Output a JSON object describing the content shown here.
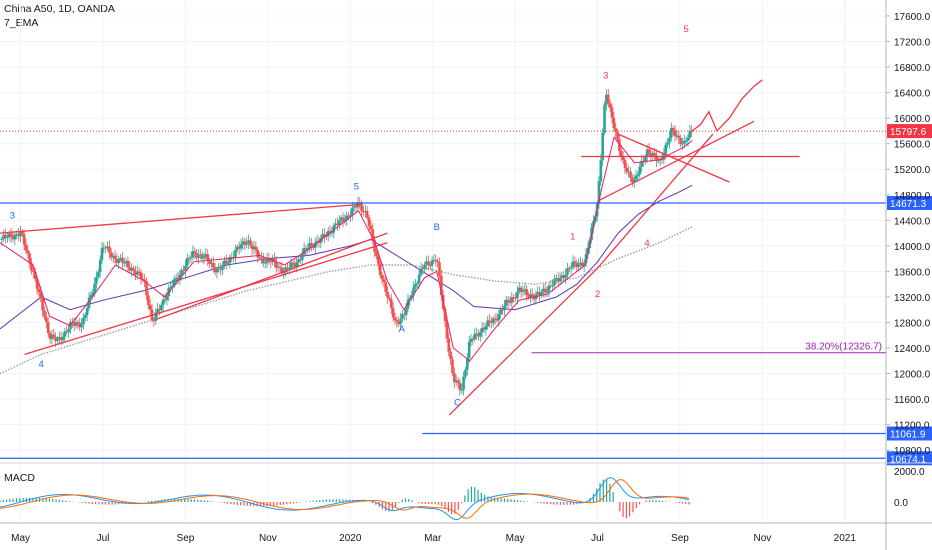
{
  "chart_data": {
    "type": "line",
    "symbol": "China A50, 1D, OANDA",
    "indicator_label": "7_EMA",
    "macd_label": "MACD",
    "yaxis_ticks": [
      17600,
      17200,
      16800,
      16400,
      16000,
      15600,
      15200,
      14800,
      14400,
      14000,
      13600,
      13200,
      12800,
      12400,
      12000,
      11600,
      11200,
      10800
    ],
    "ytick_labels": [
      "17600.0",
      "17200.0",
      "16800.0",
      "16400.0",
      "16000.0",
      "15600.0",
      "15200.0",
      "14800.0",
      "14400.0",
      "14000.0",
      "13600.0",
      "13200.0",
      "12800.0",
      "12400.0",
      "12000.0",
      "11600.0",
      "11200.0",
      "10800.0"
    ],
    "ylim": [
      10600,
      17850
    ],
    "macd_ticks": [
      "2000.0",
      "0.0"
    ],
    "x_labels": [
      "May",
      "Jul",
      "Sep",
      "Nov",
      "2020",
      "Mar",
      "May",
      "Jul",
      "Sep",
      "Nov",
      "2021"
    ],
    "x_label_pos": [
      0,
      2,
      4,
      6,
      8,
      10,
      12,
      14,
      16,
      18,
      20
    ],
    "xlim": [
      -0.5,
      21
    ],
    "price_path": [
      [
        -0.5,
        14100
      ],
      [
        0,
        14200
      ],
      [
        0.3,
        13600
      ],
      [
        0.5,
        13100
      ],
      [
        0.7,
        12600
      ],
      [
        0.9,
        12500
      ],
      [
        1.2,
        12750
      ],
      [
        1.5,
        12800
      ],
      [
        1.8,
        13400
      ],
      [
        2.0,
        14000
      ],
      [
        2.3,
        13800
      ],
      [
        2.6,
        13700
      ],
      [
        3.0,
        13450
      ],
      [
        3.2,
        12800
      ],
      [
        3.5,
        13200
      ],
      [
        3.8,
        13500
      ],
      [
        4.2,
        13900
      ],
      [
        4.5,
        13800
      ],
      [
        4.8,
        13600
      ],
      [
        5.2,
        13900
      ],
      [
        5.5,
        14100
      ],
      [
        5.8,
        13800
      ],
      [
        6.1,
        13750
      ],
      [
        6.4,
        13600
      ],
      [
        6.7,
        13750
      ],
      [
        7.0,
        14000
      ],
      [
        7.3,
        14100
      ],
      [
        7.6,
        14300
      ],
      [
        7.9,
        14450
      ],
      [
        8.2,
        14660
      ],
      [
        8.4,
        14500
      ],
      [
        8.6,
        13900
      ],
      [
        8.9,
        13200
      ],
      [
        9.1,
        12800
      ],
      [
        9.3,
        12900
      ],
      [
        9.5,
        13300
      ],
      [
        9.8,
        13700
      ],
      [
        10.1,
        13800
      ],
      [
        10.3,
        12800
      ],
      [
        10.5,
        11900
      ],
      [
        10.7,
        11750
      ],
      [
        10.9,
        12500
      ],
      [
        11.2,
        12700
      ],
      [
        11.5,
        12850
      ],
      [
        11.8,
        13100
      ],
      [
        12.1,
        13300
      ],
      [
        12.5,
        13200
      ],
      [
        12.8,
        13350
      ],
      [
        13.1,
        13500
      ],
      [
        13.4,
        13700
      ],
      [
        13.7,
        13750
      ],
      [
        14.0,
        14700
      ],
      [
        14.2,
        16400
      ],
      [
        14.4,
        15900
      ],
      [
        14.6,
        15300
      ],
      [
        14.9,
        15000
      ],
      [
        15.2,
        15500
      ],
      [
        15.5,
        15300
      ],
      [
        15.8,
        15800
      ],
      [
        16.1,
        15600
      ],
      [
        16.3,
        15800
      ]
    ],
    "ema_path": [
      [
        -0.5,
        14050
      ],
      [
        0.3,
        13700
      ],
      [
        0.7,
        12900
      ],
      [
        1.2,
        12750
      ],
      [
        1.8,
        13250
      ],
      [
        2.3,
        13700
      ],
      [
        3.0,
        13450
      ],
      [
        3.5,
        13200
      ],
      [
        4.2,
        13750
      ],
      [
        5.0,
        13800
      ],
      [
        5.8,
        13850
      ],
      [
        6.4,
        13700
      ],
      [
        7.0,
        13950
      ],
      [
        7.6,
        14250
      ],
      [
        8.2,
        14550
      ],
      [
        8.6,
        14050
      ],
      [
        8.9,
        13450
      ],
      [
        9.3,
        13000
      ],
      [
        9.8,
        13500
      ],
      [
        10.1,
        13600
      ],
      [
        10.5,
        12400
      ],
      [
        10.9,
        12200
      ],
      [
        11.5,
        12700
      ],
      [
        12.1,
        13150
      ],
      [
        12.8,
        13250
      ],
      [
        13.4,
        13550
      ],
      [
        13.7,
        13700
      ],
      [
        14.1,
        14900
      ],
      [
        14.4,
        15700
      ],
      [
        14.9,
        15300
      ],
      [
        15.5,
        15350
      ],
      [
        16.1,
        15550
      ],
      [
        16.3,
        15650
      ]
    ],
    "ma_mid_path": [
      [
        -0.5,
        12700
      ],
      [
        0.5,
        13200
      ],
      [
        1.2,
        13000
      ],
      [
        2.0,
        13150
      ],
      [
        3.0,
        13300
      ],
      [
        4.0,
        13500
      ],
      [
        5.0,
        13700
      ],
      [
        6.0,
        13800
      ],
      [
        7.0,
        13850
      ],
      [
        8.0,
        14000
      ],
      [
        8.5,
        14100
      ],
      [
        9.0,
        13900
      ],
      [
        9.5,
        13700
      ],
      [
        10.0,
        13500
      ],
      [
        10.5,
        13300
      ],
      [
        11.0,
        13050
      ],
      [
        12.0,
        13000
      ],
      [
        13.0,
        13200
      ],
      [
        13.5,
        13400
      ],
      [
        14.0,
        13750
      ],
      [
        14.5,
        14200
      ],
      [
        15.0,
        14500
      ],
      [
        15.5,
        14700
      ],
      [
        16.0,
        14850
      ],
      [
        16.3,
        14950
      ]
    ],
    "ma_slow_path": [
      [
        -0.5,
        12000
      ],
      [
        0.5,
        12300
      ],
      [
        1.5,
        12500
      ],
      [
        2.5,
        12700
      ],
      [
        3.5,
        12900
      ],
      [
        4.5,
        13100
      ],
      [
        5.5,
        13300
      ],
      [
        6.5,
        13450
      ],
      [
        7.5,
        13600
      ],
      [
        8.5,
        13700
      ],
      [
        9.5,
        13700
      ],
      [
        10.5,
        13550
      ],
      [
        11.5,
        13450
      ],
      [
        12.5,
        13400
      ],
      [
        13.5,
        13500
      ],
      [
        14.5,
        13800
      ],
      [
        15.5,
        14050
      ],
      [
        16.3,
        14300
      ]
    ],
    "horizontal_levels": [
      {
        "value": 14671.3,
        "label": "14671.3",
        "color": "#2962ff",
        "x_from": -0.5
      },
      {
        "value": 11061.9,
        "label": "11061.9",
        "color": "#2962ff",
        "x_from": 9.75
      },
      {
        "value": 10674.1,
        "label": "10674.1",
        "color": "#2962ff",
        "x_from": -0.5
      },
      {
        "value": 12326.7,
        "label": "38.20%(12326.7)",
        "color": "#9c27b0",
        "x_from": 12.4
      }
    ],
    "last_price": {
      "value": 15797.6,
      "label": "15797.6",
      "color": "#f23645"
    },
    "trend_lines": [
      {
        "points": [
          [
            -0.5,
            14200
          ],
          [
            8.25,
            14650
          ]
        ]
      },
      {
        "points": [
          [
            0.1,
            12300
          ],
          [
            8.9,
            14050
          ]
        ]
      },
      {
        "points": [
          [
            3.3,
            12850
          ],
          [
            8.9,
            14200
          ]
        ]
      },
      {
        "points": [
          [
            10.4,
            11350
          ],
          [
            14.0,
            13650
          ],
          [
            16.8,
            15750
          ]
        ]
      },
      {
        "points": [
          [
            13.6,
            15400
          ],
          [
            18.9,
            15400
          ]
        ]
      },
      {
        "points": [
          [
            14.5,
            15750
          ],
          [
            17.2,
            15000
          ]
        ]
      },
      {
        "points": [
          [
            14.0,
            14700
          ],
          [
            17.8,
            15950
          ]
        ]
      }
    ],
    "projection_path": [
      [
        16.3,
        15800
      ],
      [
        16.5,
        15900
      ],
      [
        16.7,
        16100
      ],
      [
        16.9,
        15800
      ],
      [
        17.2,
        16000
      ],
      [
        17.5,
        16300
      ],
      [
        17.8,
        16500
      ],
      [
        18.0,
        16600
      ]
    ],
    "wave_labels": [
      {
        "text": "3",
        "x": -0.2,
        "y": 14430,
        "color": "#2962ff"
      },
      {
        "text": "4",
        "x": 0.5,
        "y": 12100,
        "color": "#2962ff"
      },
      {
        "text": "5",
        "x": 8.15,
        "y": 14880,
        "color": "#2962ff"
      },
      {
        "text": "A",
        "x": 9.25,
        "y": 12650,
        "color": "#2962ff"
      },
      {
        "text": "B",
        "x": 10.1,
        "y": 14250,
        "color": "#2962ff"
      },
      {
        "text": "C",
        "x": 10.6,
        "y": 11500,
        "color": "#2962ff"
      },
      {
        "text": "1",
        "x": 13.4,
        "y": 14100,
        "color": "#f23645"
      },
      {
        "text": "2",
        "x": 14.0,
        "y": 13200,
        "color": "#f23645"
      },
      {
        "text": "3",
        "x": 14.2,
        "y": 16620,
        "color": "#f23645"
      },
      {
        "text": "4",
        "x": 15.2,
        "y": 14000,
        "color": "#f23645"
      },
      {
        "text": "5",
        "x": 16.15,
        "y": 17350,
        "color": "#f23645"
      }
    ],
    "legend": "top-left",
    "grid": true
  },
  "colors": {
    "price": "#1b9a5a",
    "ema": "#e91e63",
    "ma_mid": "#5e35b1",
    "ma_slow": "#9e9e9e",
    "drawings": "#f23645",
    "macd": "#2196f3",
    "signal": "#ff6d00"
  }
}
